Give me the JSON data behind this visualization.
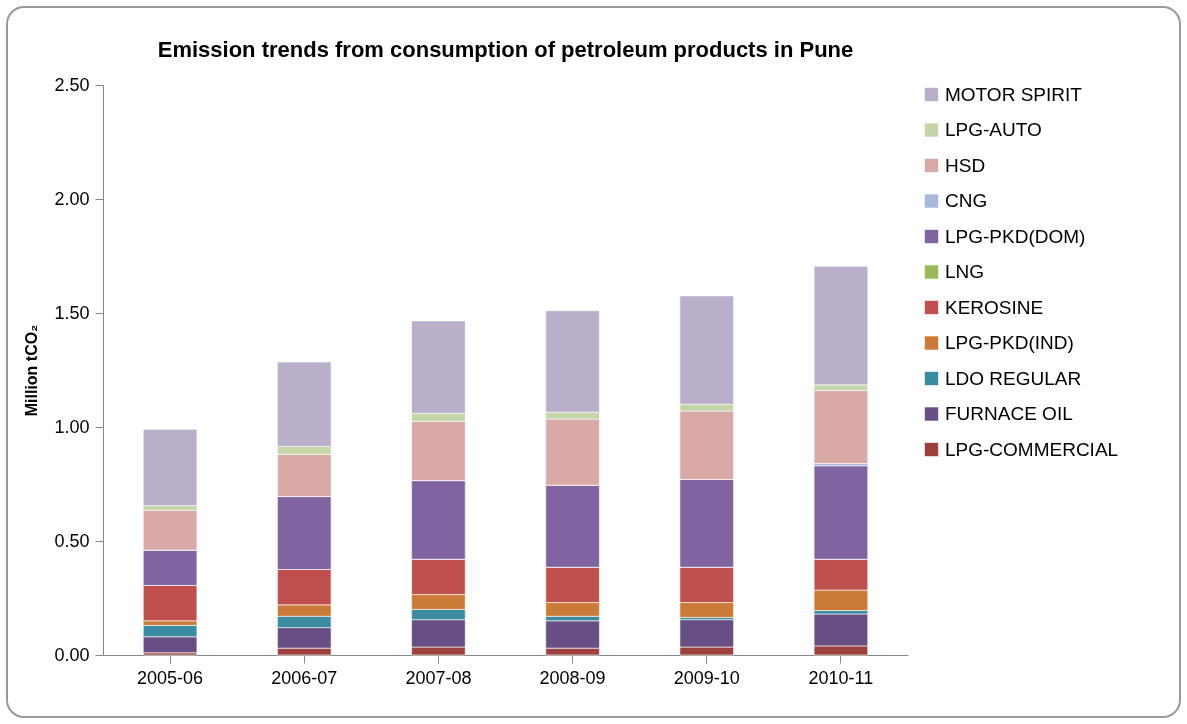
{
  "chart_data": {
    "type": "bar",
    "title": "Emission trends from consumption of petroleum products in Pune",
    "ylabel": "Million tCO₂",
    "categories": [
      "2005-06",
      "2006-07",
      "2007-08",
      "2008-09",
      "2009-10",
      "2010-11"
    ],
    "stacked": true,
    "legend": "right",
    "grid": false,
    "ylim": [
      0,
      2.5
    ],
    "yticks": [
      {
        "value": 0,
        "label": "0.00"
      },
      {
        "value": 0.5,
        "label": "0.50"
      },
      {
        "value": 1,
        "label": "1.00"
      },
      {
        "value": 1.5,
        "label": "1.50"
      },
      {
        "value": 2,
        "label": "2.00"
      },
      {
        "value": 2.5,
        "label": "2.50"
      }
    ],
    "series": [
      {
        "name": "LPG-COMMERCIAL",
        "color": "#9e413e",
        "values": [
          0.01,
          0.03,
          0.035,
          0.03,
          0.035,
          0.04
        ]
      },
      {
        "name": "FURNACE OIL",
        "color": "#674e85",
        "values": [
          0.07,
          0.09,
          0.12,
          0.12,
          0.12,
          0.14
        ]
      },
      {
        "name": "LDO REGULAR",
        "color": "#3b8ca3",
        "values": [
          0.05,
          0.05,
          0.045,
          0.02,
          0.01,
          0.015
        ]
      },
      {
        "name": "LPG-PKD(IND)",
        "color": "#cc7a38",
        "values": [
          0.02,
          0.05,
          0.065,
          0.06,
          0.065,
          0.09
        ]
      },
      {
        "name": "KEROSINE",
        "color": "#c0504d",
        "values": [
          0.155,
          0.155,
          0.155,
          0.155,
          0.155,
          0.135
        ]
      },
      {
        "name": "LNG",
        "color": "#9bbb59",
        "values": [
          0,
          0,
          0,
          0,
          0,
          0
        ]
      },
      {
        "name": "LPG-PKD(DOM)",
        "color": "#8064a2",
        "values": [
          0.155,
          0.32,
          0.345,
          0.36,
          0.385,
          0.41
        ]
      },
      {
        "name": "CNG",
        "color": "#a6b8dc",
        "values": [
          0,
          0,
          0,
          0,
          0,
          0.01
        ]
      },
      {
        "name": "HSD",
        "color": "#d9a9a8",
        "values": [
          0.175,
          0.185,
          0.26,
          0.29,
          0.3,
          0.32
        ]
      },
      {
        "name": "LPG-AUTO",
        "color": "#c4d6a8",
        "values": [
          0.02,
          0.035,
          0.035,
          0.03,
          0.03,
          0.025
        ]
      },
      {
        "name": "MOTOR SPIRIT",
        "color": "#b9afcb",
        "values": [
          0.335,
          0.37,
          0.405,
          0.445,
          0.475,
          0.52
        ]
      }
    ]
  }
}
